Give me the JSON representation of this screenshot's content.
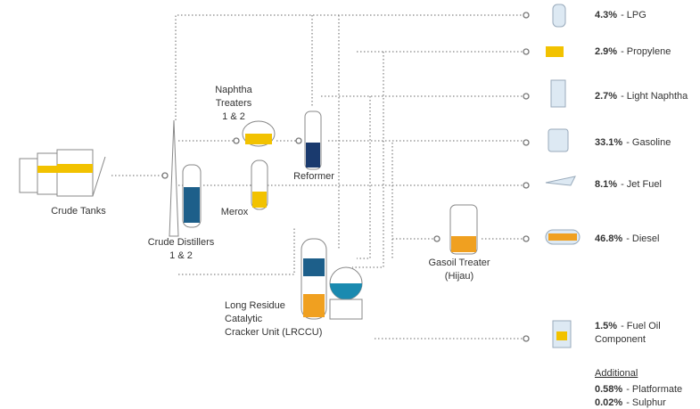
{
  "units": {
    "crude_tanks": [
      "Crude Tanks"
    ],
    "crude_distillers": [
      "Crude Distillers",
      "1 & 2"
    ],
    "naphtha_treaters": [
      "Naphtha",
      "Treaters",
      "1 & 2"
    ],
    "merox": [
      "Merox"
    ],
    "reformer": [
      "Reformer"
    ],
    "gasoil_treater": [
      "Gasoil Treater",
      "(Hijau)"
    ],
    "lrccu": [
      "Long Residue",
      "Catalytic",
      "Cracker Unit (LRCCU)"
    ]
  },
  "products": [
    {
      "share": "4.3%",
      "name": [
        "- LPG"
      ]
    },
    {
      "share": "2.9%",
      "name": [
        "- Propylene"
      ]
    },
    {
      "share": "2.7%",
      "name": [
        "- Light Naphtha"
      ]
    },
    {
      "share": "33.1%",
      "name": [
        "- Gasoline"
      ]
    },
    {
      "share": "8.1%",
      "name": [
        "- Jet Fuel"
      ]
    },
    {
      "share": "46.8%",
      "name": [
        "- Diesel"
      ]
    },
    {
      "share": "1.5%",
      "name": [
        "- Fuel Oil",
        "Component"
      ]
    }
  ],
  "additional": {
    "title": "Additional",
    "items": [
      {
        "share": "0.58%",
        "name": "- Platformate"
      },
      {
        "share": "0.02%",
        "name": "- Sulphur"
      }
    ]
  }
}
